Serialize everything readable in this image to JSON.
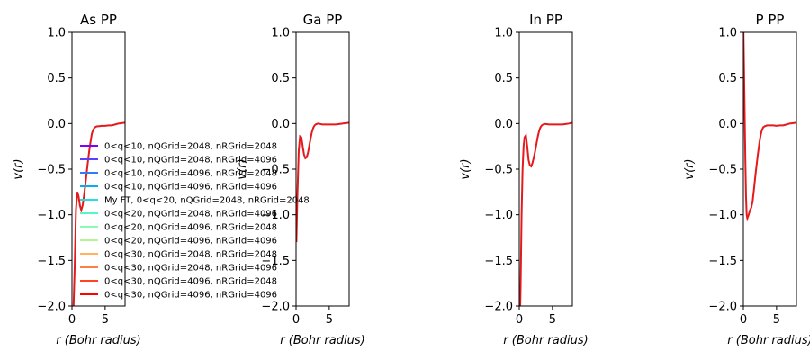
{
  "chart_data": [
    {
      "type": "line",
      "title": "As PP",
      "xlabel": "r (Bohr radius)",
      "ylabel": "v(r)",
      "xlim": [
        0,
        8
      ],
      "ylim": [
        -2.0,
        1.0
      ],
      "xticks": [
        0,
        5
      ],
      "yticks": [
        -2.0,
        -1.5,
        -1.0,
        -0.5,
        0.0,
        0.5,
        1.0
      ],
      "xtick_labels": [
        "0",
        "5"
      ],
      "ytick_labels": [
        "−2.0",
        "−1.5",
        "−1.0",
        "−0.5",
        "0.0",
        "0.5",
        "1.0"
      ],
      "x": [
        0.05,
        0.2,
        0.4,
        0.6,
        0.8,
        1.0,
        1.2,
        1.4,
        1.6,
        1.8,
        2.0,
        2.2,
        2.4,
        2.6,
        2.8,
        3.0,
        3.2,
        3.4,
        3.6,
        3.8,
        4.0,
        4.5,
        5.0,
        5.5,
        6.0,
        6.5,
        7.0,
        7.5,
        8.0
      ],
      "y": [
        -2.3,
        -2.1,
        -1.6,
        -0.95,
        -0.75,
        -0.8,
        -0.9,
        -0.95,
        -0.9,
        -0.8,
        -0.68,
        -0.55,
        -0.42,
        -0.3,
        -0.2,
        -0.11,
        -0.07,
        -0.045,
        -0.035,
        -0.03,
        -0.03,
        -0.025,
        -0.025,
        -0.02,
        -0.02,
        -0.01,
        0.0,
        0.005,
        0.01
      ]
    },
    {
      "type": "line",
      "title": "Ga PP",
      "xlabel": "r (Bohr radius)",
      "ylabel": "v(r)",
      "xlim": [
        0,
        8
      ],
      "ylim": [
        -2.0,
        1.0
      ],
      "xticks": [
        0,
        5
      ],
      "yticks": [
        -2.0,
        -1.5,
        -1.0,
        -0.5,
        0.0,
        0.5,
        1.0
      ],
      "xtick_labels": [
        "0",
        "5"
      ],
      "ytick_labels": [
        "−2.0",
        "−1.5",
        "−1.0",
        "−0.5",
        "0.0",
        "0.5",
        "1.0"
      ],
      "x": [
        0.05,
        0.2,
        0.4,
        0.6,
        0.8,
        1.0,
        1.2,
        1.4,
        1.6,
        1.8,
        2.0,
        2.2,
        2.4,
        2.6,
        2.8,
        3.0,
        3.2,
        3.4,
        3.6,
        4.0,
        4.5,
        5.0,
        5.5,
        6.0,
        6.5,
        7.0,
        7.5,
        8.0
      ],
      "y": [
        -1.3,
        -0.8,
        -0.3,
        -0.14,
        -0.15,
        -0.25,
        -0.34,
        -0.38,
        -0.37,
        -0.32,
        -0.24,
        -0.16,
        -0.09,
        -0.045,
        -0.02,
        -0.008,
        -0.003,
        0.0,
        -0.005,
        -0.01,
        -0.01,
        -0.01,
        -0.01,
        -0.01,
        -0.005,
        0.0,
        0.005,
        0.01
      ]
    },
    {
      "type": "line",
      "title": "In PP",
      "xlabel": "r (Bohr radius)",
      "ylabel": "v(r)",
      "xlim": [
        0,
        8
      ],
      "ylim": [
        -2.0,
        1.0
      ],
      "xticks": [
        0,
        5
      ],
      "yticks": [
        -2.0,
        -1.5,
        -1.0,
        -0.5,
        0.0,
        0.5,
        1.0
      ],
      "xtick_labels": [
        "0",
        "5"
      ],
      "ytick_labels": [
        "−2.0",
        "−1.5",
        "−1.0",
        "−0.5",
        "0.0",
        "0.5",
        "1.0"
      ],
      "x": [
        0.05,
        0.2,
        0.35,
        0.5,
        0.65,
        0.8,
        1.0,
        1.2,
        1.4,
        1.6,
        1.8,
        2.0,
        2.2,
        2.4,
        2.6,
        2.8,
        3.0,
        3.2,
        3.4,
        3.6,
        3.8,
        4.0,
        4.5,
        5.0,
        5.5,
        6.0,
        6.5,
        7.0,
        7.5,
        8.0
      ],
      "y": [
        -2.3,
        -1.8,
        -1.0,
        -0.5,
        -0.25,
        -0.15,
        -0.13,
        -0.25,
        -0.4,
        -0.46,
        -0.47,
        -0.43,
        -0.37,
        -0.3,
        -0.22,
        -0.14,
        -0.08,
        -0.04,
        -0.02,
        -0.01,
        -0.005,
        -0.005,
        -0.01,
        -0.01,
        -0.01,
        -0.01,
        -0.01,
        -0.005,
        0.0,
        0.01
      ]
    },
    {
      "type": "line",
      "title": "P PP",
      "xlabel": "r (Bohr radius)",
      "ylabel": "v(r)",
      "xlim": [
        0,
        8
      ],
      "ylim": [
        -2.0,
        1.0
      ],
      "xticks": [
        0,
        5
      ],
      "yticks": [
        -2.0,
        -1.5,
        -1.0,
        -0.5,
        0.0,
        0.5,
        1.0
      ],
      "xtick_labels": [
        "0",
        "5"
      ],
      "ytick_labels": [
        "−2.0",
        "−1.5",
        "−1.0",
        "−0.5",
        "0.0",
        "0.5",
        "1.0"
      ],
      "x": [
        0.02,
        0.1,
        0.2,
        0.3,
        0.4,
        0.5,
        0.6,
        0.8,
        1.0,
        1.2,
        1.4,
        1.6,
        1.8,
        2.0,
        2.2,
        2.4,
        2.6,
        2.8,
        3.0,
        3.2,
        3.4,
        3.6,
        3.8,
        4.0,
        4.5,
        5.0,
        5.5,
        6.0,
        6.5,
        7.0,
        7.5,
        8.0
      ],
      "y": [
        1.0,
        0.6,
        0.1,
        -0.4,
        -0.8,
        -1.0,
        -1.04,
        -1.0,
        -0.95,
        -0.92,
        -0.85,
        -0.72,
        -0.58,
        -0.45,
        -0.33,
        -0.22,
        -0.13,
        -0.07,
        -0.04,
        -0.03,
        -0.025,
        -0.02,
        -0.02,
        -0.02,
        -0.02,
        -0.025,
        -0.02,
        -0.02,
        -0.01,
        0.0,
        0.005,
        0.01
      ]
    }
  ],
  "legend": {
    "placement": "center-left",
    "entries": [
      {
        "label": "0<q<10, nQGrid=2048, nRGrid=2048",
        "color": "#8000ff"
      },
      {
        "label": "0<q<10, nQGrid=2048, nRGrid=4096",
        "color": "#5a3ffd"
      },
      {
        "label": "0<q<10, nQGrid=4096, nRGrid=2048",
        "color": "#2c7ef7"
      },
      {
        "label": "0<q<10, nQGrid=4096, nRGrid=4096",
        "color": "#06aeed"
      },
      {
        "label": "My FT, 0<q<20, nQGrid=2048, nRGrid=2048",
        "color": "#2adddd"
      },
      {
        "label": "0<q<20, nQGrid=2048, nRGrid=4096",
        "color": "#58f5c9"
      },
      {
        "label": "0<q<20, nQGrid=4096, nRGrid=2048",
        "color": "#86fdb1"
      },
      {
        "label": "0<q<20, nQGrid=4096, nRGrid=4096",
        "color": "#b4f695"
      },
      {
        "label": "0<q<30, nQGrid=2048, nRGrid=2048",
        "color": "#ffb360"
      },
      {
        "label": "0<q<30, nQGrid=2048, nRGrid=4096",
        "color": "#ff7e41"
      },
      {
        "label": "0<q<30, nQGrid=4096, nRGrid=2048",
        "color": "#ff4521"
      },
      {
        "label": "0<q<30, nQGrid=4096, nRGrid=4096",
        "color": "#ff0000"
      }
    ]
  },
  "colors": {
    "line": "#e41a1c",
    "axis": "#000000",
    "background": "#ffffff"
  }
}
